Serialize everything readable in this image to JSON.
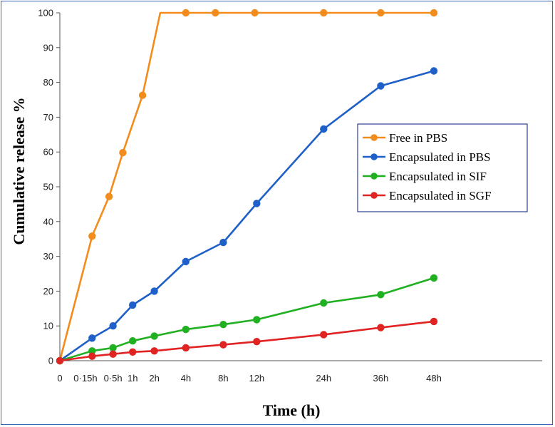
{
  "chart_data": {
    "type": "line",
    "title": "",
    "xlabel": "Time (h)",
    "ylabel": "Cumulative release %",
    "ylim": [
      0,
      100
    ],
    "yticks": [
      0,
      10,
      20,
      30,
      40,
      50,
      60,
      70,
      80,
      90,
      100
    ],
    "x_tick_labels": [
      "0",
      "0·15h",
      "0·5h",
      "1h",
      "2h",
      "4h",
      "8h",
      "12h",
      "24h",
      "36h",
      "48h"
    ],
    "x_tick_values": [
      0,
      0.65,
      1.35,
      1.85,
      2.4,
      3.2,
      4.15,
      5.0,
      6.7,
      8.15,
      9.5
    ],
    "xlim": [
      0,
      12.25
    ],
    "grid": false,
    "legend_position": "right-middle",
    "series": [
      {
        "name": "Free in PBS",
        "color": "#f28c1c",
        "x": [
          0,
          0.82,
          1.25,
          1.6,
          2.1,
          2.55,
          3.2,
          3.95,
          4.95,
          6.7,
          8.15,
          9.5
        ],
        "y": [
          0,
          35.8,
          47.2,
          59.8,
          76.3,
          100,
          100,
          100,
          100,
          100,
          100,
          100
        ],
        "markers": [
          false,
          true,
          true,
          true,
          true,
          false,
          true,
          true,
          true,
          true,
          true,
          true
        ]
      },
      {
        "name": "Encapsulated in PBS",
        "color": "#1f5fc8",
        "x": [
          0,
          0.82,
          1.35,
          1.85,
          2.4,
          3.2,
          4.15,
          5.0,
          6.7,
          8.15,
          9.5
        ],
        "y": [
          0,
          6.5,
          10,
          16,
          20,
          28.5,
          34,
          45.2,
          66.6,
          79,
          83.3
        ],
        "markers": [
          true,
          true,
          true,
          true,
          true,
          true,
          true,
          true,
          true,
          true,
          true
        ]
      },
      {
        "name": "Encapsulated in SIF",
        "color": "#21b021",
        "x": [
          0,
          0.82,
          1.35,
          1.85,
          2.4,
          3.2,
          4.15,
          5.0,
          6.7,
          8.15,
          9.5
        ],
        "y": [
          0,
          2.8,
          3.7,
          5.7,
          7.1,
          9,
          10.4,
          11.8,
          16.6,
          19,
          23.8
        ],
        "markers": [
          true,
          true,
          true,
          true,
          true,
          true,
          true,
          true,
          true,
          true,
          true
        ]
      },
      {
        "name": "Encapsulated in SGF",
        "color": "#e02323",
        "x": [
          0,
          0.82,
          1.35,
          1.85,
          2.4,
          3.2,
          4.15,
          5.0,
          6.7,
          8.15,
          9.5
        ],
        "y": [
          0,
          1.3,
          1.9,
          2.5,
          2.8,
          3.7,
          4.6,
          5.5,
          7.5,
          9.5,
          11.3
        ],
        "markers": [
          true,
          true,
          true,
          true,
          true,
          true,
          true,
          true,
          true,
          true,
          true
        ]
      }
    ]
  }
}
